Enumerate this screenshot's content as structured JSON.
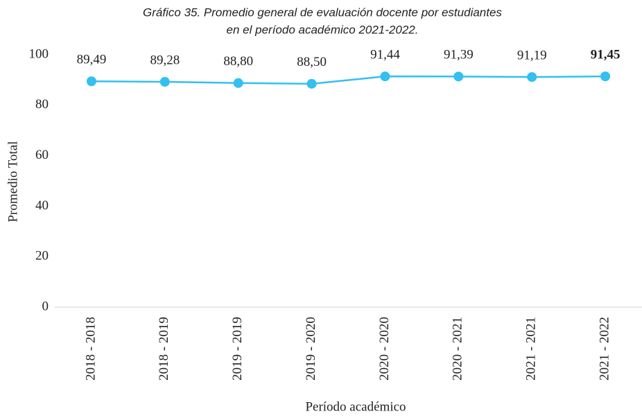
{
  "chart_data": {
    "type": "line",
    "title": [
      "Gráfico 35. Promedio general de evaluación docente por estudiantes",
      "en el período académico 2021-2022."
    ],
    "x_label": "Período académico",
    "y_label": "Promedio Total",
    "categories": [
      "2018 - 2018",
      "2018 - 2019",
      "2019 - 2019",
      "2019 - 2020",
      "2020 - 2020",
      "2020 - 2021",
      "2021 - 2021",
      "2021 - 2022"
    ],
    "values": [
      89.49,
      89.28,
      88.8,
      88.5,
      91.44,
      91.39,
      91.19,
      91.45
    ],
    "value_labels": [
      "89,49",
      "89,28",
      "88,80",
      "88,50",
      "91,44",
      "91,39",
      "91,19",
      "91,45"
    ],
    "color": "#33bff0",
    "ylim": [
      0,
      100
    ],
    "yticks": [
      0,
      20,
      40,
      60,
      80,
      100
    ],
    "grid": false
  }
}
